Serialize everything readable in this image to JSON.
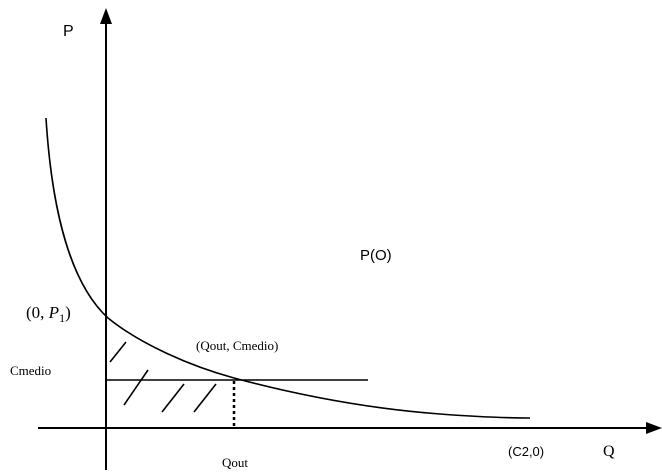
{
  "labels": {
    "y_axis": "P",
    "x_axis": "Q",
    "curve": "P(O)",
    "y_intercept_prefix": "(0, ",
    "y_intercept_var": "P",
    "y_intercept_sub": "1",
    "y_intercept_suffix": ")",
    "cmedio": "Cmedio",
    "intersection": "(Qout, Cmedio)",
    "qout": "Qout",
    "x_intercept": "(C2,0)"
  },
  "colors": {
    "line": "#000000",
    "background": "#ffffff"
  }
}
